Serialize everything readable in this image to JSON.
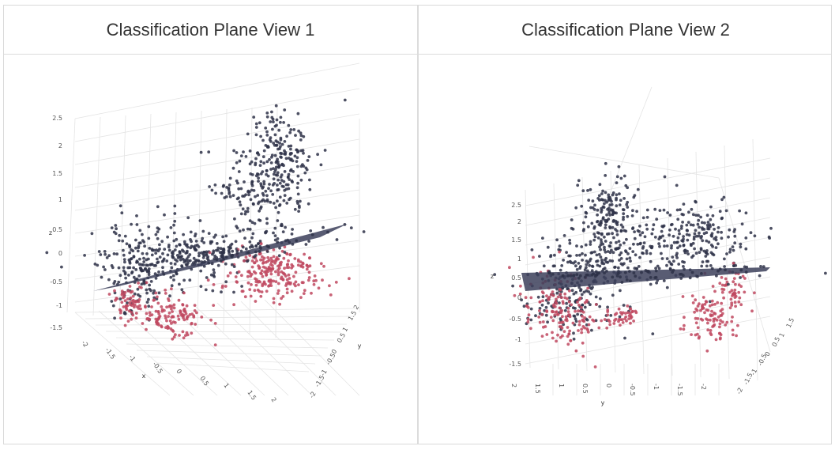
{
  "colors": {
    "class_a": "#2e3148",
    "class_b": "#c0485f",
    "plane": "#3c3f5a",
    "grid": "#e4e4e4",
    "border": "#d9d9d9"
  },
  "chart_data": [
    {
      "type": "scatter",
      "projection": "3d",
      "title": "Classification Plane View 1",
      "axes": {
        "x": {
          "label": "x",
          "ticks": [
            "-2",
            "-1.5",
            "-1",
            "-0.5",
            "0",
            "0.5",
            "1",
            "1.5",
            "2"
          ]
        },
        "y": {
          "label": "y",
          "ticks": [
            "2",
            "1.5",
            "1",
            "0.5",
            "0",
            "-0.5",
            "-1",
            "-1.5",
            "-2"
          ]
        },
        "z": {
          "label": "z",
          "ticks": [
            "-1.5",
            "-1",
            "-0.5",
            "0",
            "0.5",
            "1",
            "1.5",
            "2",
            "2.5"
          ]
        }
      },
      "series": [
        {
          "color": "#2e3148",
          "approx_points": 1200
        },
        {
          "color": "#c0485f",
          "approx_points": 800
        }
      ],
      "plane": {
        "color": "#3c3f5a"
      },
      "grid": true
    },
    {
      "type": "scatter",
      "projection": "3d",
      "title": "Classification Plane View 2",
      "axes": {
        "x": {
          "label": "",
          "ticks": [
            "2",
            "1.5",
            "1",
            "0.5",
            "0",
            "-0.5",
            "-1",
            "-1.5",
            "-2"
          ]
        },
        "y": {
          "label": "y",
          "ticks": [
            "1.5",
            "1",
            "0.5",
            "0",
            "-0.5",
            "-1",
            "-1.5",
            "-2"
          ]
        },
        "z": {
          "label": "z",
          "ticks": [
            "-1.5",
            "-1",
            "-0.5",
            "0",
            "0.5",
            "1",
            "1.5",
            "2",
            "2.5"
          ]
        }
      },
      "series": [
        {
          "color": "#2e3148",
          "approx_points": 1200
        },
        {
          "color": "#c0485f",
          "approx_points": 800
        }
      ],
      "plane": {
        "color": "#3c3f5a"
      },
      "grid": true
    }
  ]
}
